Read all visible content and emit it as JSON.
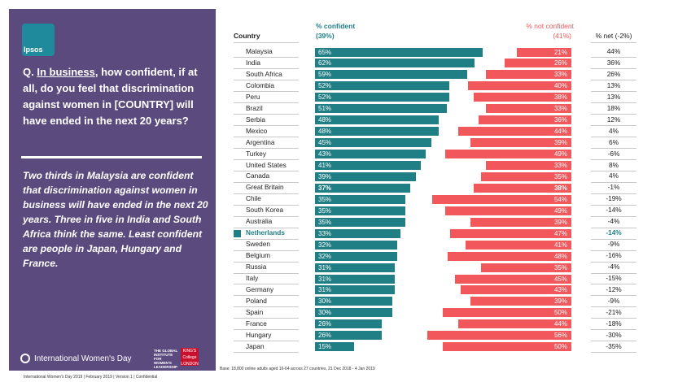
{
  "panel": {
    "logo_text": "Ipsos",
    "question_prefix": "Q. ",
    "question_underline": "In business",
    "question_rest": ", how confident, if at all, do you feel that discrimination against women in [COUNTRY] will have ended in the next 20 years?",
    "summary": "Two thirds in Malaysia are confident that discrimination against women in business will have ended in the next 20 years. Three in five in India and South Africa think the same. Least confident are people in Japan, Hungary and France.",
    "iwd_label": "International Women's Day",
    "global_institute": "THE GLOBAL INSTITUTE FOR WOMEN'S LEADERSHIP",
    "kings_label": "KING'S College LONDON"
  },
  "footer": "International Women's Day 2019 | February 2019 | Version 1 | Confidential",
  "base_note": "Base: 18,800 online adults aged 16-64 across 27 countries,  21 Dec 2018 - 4 Jan  2019",
  "colors": {
    "confident": "#1f7f85",
    "not_confident": "#f2575c",
    "panel": "#5b4a7e"
  },
  "chart_data": {
    "type": "bar",
    "layout": "diverging-horizontal",
    "title": "Q. In business, how confident, if at all, do you feel that discrimination against women in [COUNTRY] will have ended in the next 20 years?",
    "headers": {
      "country": "Country",
      "confident_l1": "% confident",
      "confident_l2": "(39%)",
      "not_confident_l1": "% not confident",
      "not_confident_l2": "(41%)",
      "net": "% net (-2%)"
    },
    "highlight": "Netherlands",
    "rows": [
      {
        "country": "Malaysia",
        "confident": 65,
        "not_confident": 21,
        "net": "44%",
        "c_label": "65%",
        "n_label": "21%"
      },
      {
        "country": "India",
        "confident": 62,
        "not_confident": 26,
        "net": "36%",
        "c_label": "62%",
        "n_label": "26%"
      },
      {
        "country": "South Africa",
        "confident": 59,
        "not_confident": 33,
        "net": "26%",
        "c_label": "59%",
        "n_label": "33%"
      },
      {
        "country": "Colombia",
        "confident": 52,
        "not_confident": 40,
        "net": "13%",
        "c_label": "52%",
        "n_label": "40%"
      },
      {
        "country": "Peru",
        "confident": 52,
        "not_confident": 38,
        "net": "13%",
        "c_label": "52%",
        "n_label": "38%"
      },
      {
        "country": "Brazil",
        "confident": 51,
        "not_confident": 33,
        "net": "18%",
        "c_label": "51%",
        "n_label": "33%"
      },
      {
        "country": "Serbia",
        "confident": 48,
        "not_confident": 36,
        "net": "12%",
        "c_label": "48%",
        "n_label": "36%"
      },
      {
        "country": "Mexico",
        "confident": 48,
        "not_confident": 44,
        "net": "4%",
        "c_label": "48%",
        "n_label": "44%"
      },
      {
        "country": "Argentina",
        "confident": 45,
        "not_confident": 39,
        "net": "6%",
        "c_label": "45%",
        "n_label": "39%"
      },
      {
        "country": "Turkey",
        "confident": 43,
        "not_confident": 49,
        "net": "-6%",
        "c_label": "43%",
        "n_label": "49%"
      },
      {
        "country": "United States",
        "confident": 41,
        "not_confident": 33,
        "net": "8%",
        "c_label": "41%",
        "n_label": "33%"
      },
      {
        "country": "Canada",
        "confident": 39,
        "not_confident": 35,
        "net": "4%",
        "c_label": "39%",
        "n_label": "35%"
      },
      {
        "country": "Great Britain",
        "confident": 37,
        "not_confident": 38,
        "net": "-1%",
        "c_label": "37%",
        "n_label": "38%",
        "bold": true
      },
      {
        "country": "Chile",
        "confident": 35,
        "not_confident": 54,
        "net": "-19%",
        "c_label": "35%",
        "n_label": "54%"
      },
      {
        "country": "South Korea",
        "confident": 35,
        "not_confident": 49,
        "net": "-14%",
        "c_label": "35%",
        "n_label": "49%"
      },
      {
        "country": "Australia",
        "confident": 35,
        "not_confident": 39,
        "net": "-4%",
        "c_label": "35%",
        "n_label": "39%"
      },
      {
        "country": "Netherlands",
        "confident": 33,
        "not_confident": 47,
        "net": "-14%",
        "c_label": "33%",
        "n_label": "47%"
      },
      {
        "country": "Sweden",
        "confident": 32,
        "not_confident": 41,
        "net": "-9%",
        "c_label": "32%",
        "n_label": "41%"
      },
      {
        "country": "Belgium",
        "confident": 32,
        "not_confident": 48,
        "net": "-16%",
        "c_label": "32%",
        "n_label": "48%"
      },
      {
        "country": "Russia",
        "confident": 31,
        "not_confident": 35,
        "net": "-4%",
        "c_label": "31%",
        "n_label": "35%"
      },
      {
        "country": "Italy",
        "confident": 31,
        "not_confident": 45,
        "net": "-15%",
        "c_label": "31%",
        "n_label": "45%"
      },
      {
        "country": "Germany",
        "confident": 31,
        "not_confident": 43,
        "net": "-12%",
        "c_label": "31%",
        "n_label": "43%"
      },
      {
        "country": "Poland",
        "confident": 30,
        "not_confident": 39,
        "net": "-9%",
        "c_label": "30%",
        "n_label": "39%"
      },
      {
        "country": "Spain",
        "confident": 30,
        "not_confident": 50,
        "net": "-21%",
        "c_label": "30%",
        "n_label": "50%"
      },
      {
        "country": "France",
        "confident": 26,
        "not_confident": 44,
        "net": "-18%",
        "c_label": "26%",
        "n_label": "44%"
      },
      {
        "country": "Hungary",
        "confident": 26,
        "not_confident": 56,
        "net": "-30%",
        "c_label": "26%",
        "n_label": "56%"
      },
      {
        "country": "Japan",
        "confident": 15,
        "not_confident": 50,
        "net": "-35%",
        "c_label": "15%",
        "n_label": "50%"
      }
    ]
  }
}
